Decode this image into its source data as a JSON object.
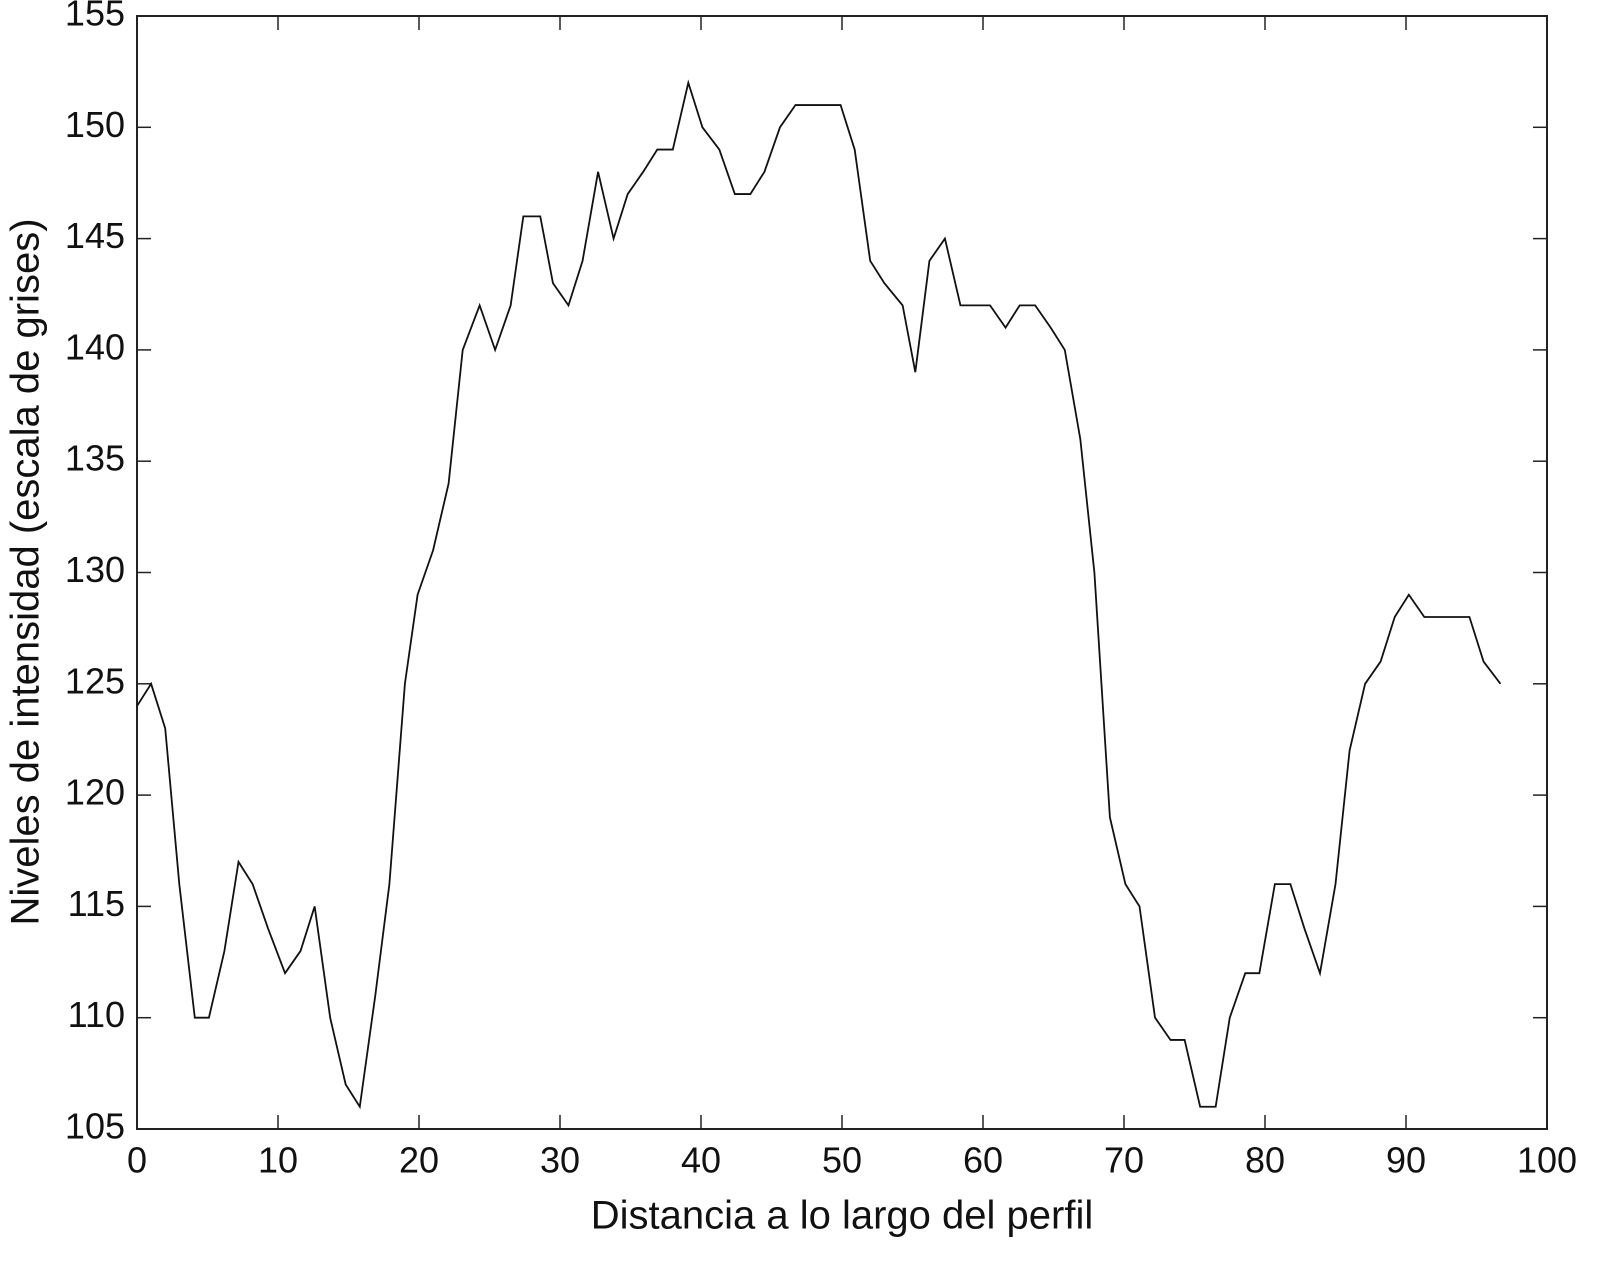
{
  "chart_data": {
    "type": "line",
    "x_label": "Distancia a lo largo del perfil",
    "y_label": "Niveles de intensidad (escala de grises)",
    "x": [
      0,
      1.0,
      2.0,
      3.0,
      4.1,
      5.1,
      6.2,
      7.2,
      8.2,
      9.3,
      10.5,
      11.6,
      12.6,
      13.7,
      14.8,
      15.8,
      16.9,
      17.9,
      19.0,
      19.9,
      21.0,
      22.1,
      23.1,
      24.3,
      25.4,
      26.5,
      27.4,
      28.6,
      29.5,
      30.6,
      31.6,
      32.7,
      33.8,
      34.8,
      35.9,
      36.9,
      38.0,
      39.1,
      40.1,
      41.3,
      42.4,
      43.5,
      44.5,
      45.6,
      46.7,
      47.7,
      48.8,
      49.9,
      50.9,
      52.0,
      53.0,
      54.3,
      55.2,
      56.2,
      57.3,
      58.4,
      59.4,
      60.5,
      61.6,
      62.6,
      63.7,
      64.8,
      65.8,
      66.9,
      67.9,
      69.0,
      70.1,
      71.1,
      72.2,
      73.3,
      74.3,
      75.4,
      76.5,
      77.5,
      78.6,
      79.6,
      80.7,
      81.8,
      82.8,
      83.9,
      85.0,
      86.0,
      87.1,
      88.2,
      89.2,
      90.2,
      91.3,
      92.4,
      93.5,
      94.5,
      95.5,
      96.7
    ],
    "series": [
      {
        "color": "#111111",
        "values": [
          124,
          125,
          123,
          116,
          110,
          110,
          113,
          117,
          116,
          114,
          112,
          113,
          115,
          110,
          107,
          106,
          111,
          116,
          125,
          129,
          131,
          134,
          140,
          142,
          140,
          142,
          146,
          146,
          143,
          142,
          144,
          148,
          145,
          147,
          148,
          149,
          149,
          152,
          150,
          149,
          147,
          147,
          148,
          150,
          151,
          151,
          151,
          151,
          149,
          144,
          143,
          142,
          139,
          144,
          145,
          142,
          142,
          142,
          141,
          142,
          142,
          141,
          140,
          136,
          130,
          119,
          116,
          115,
          110,
          109,
          109,
          106,
          106,
          110,
          112,
          112,
          116,
          116,
          114,
          112,
          116,
          122,
          125,
          126,
          128,
          129,
          128,
          128,
          128,
          128,
          126,
          125
        ]
      }
    ],
    "xlim": [
      0,
      100
    ],
    "xticks": [
      0,
      10,
      20,
      30,
      40,
      50,
      60,
      70,
      80,
      90,
      100
    ],
    "ylim": [
      105,
      155
    ],
    "yticks": [
      105,
      110,
      115,
      120,
      125,
      130,
      135,
      140,
      145,
      150,
      155
    ],
    "grid": false
  }
}
